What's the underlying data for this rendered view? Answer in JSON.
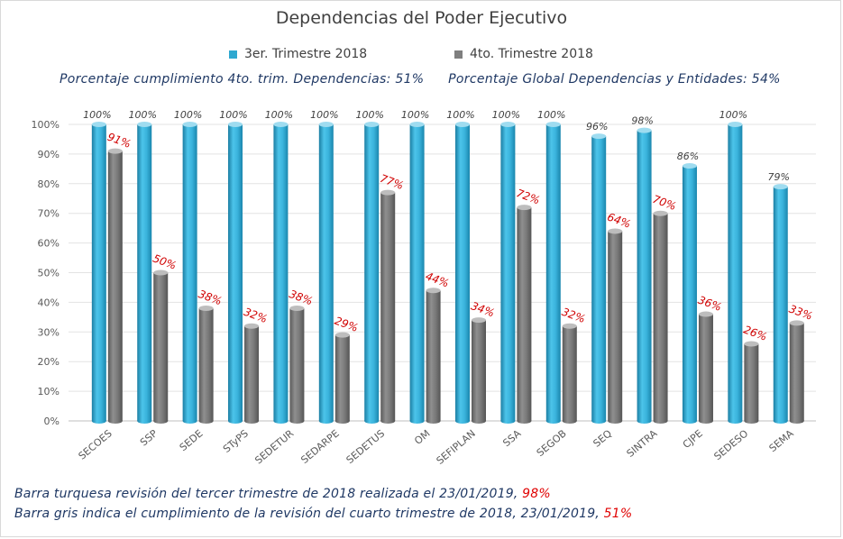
{
  "chart_data": {
    "type": "bar",
    "title": "Dependencias del Poder Ejecutivo",
    "categories": [
      "SECOES",
      "SSP",
      "SEDE",
      "STyPS",
      "SEDETUR",
      "SEDARPE",
      "SEDETUS",
      "OM",
      "SEFIPLAN",
      "SSA",
      "SEGOB",
      "SEQ",
      "SINTRA",
      "CJPE",
      "SEDESO",
      "SEMA"
    ],
    "series": [
      {
        "name": "3er. Trimestre 2018",
        "color": "#2fa8d0",
        "values": [
          100,
          100,
          100,
          100,
          100,
          100,
          100,
          100,
          100,
          100,
          100,
          96,
          98,
          86,
          100,
          79
        ],
        "labels": [
          "100%",
          "100%",
          "100%",
          "100%",
          "100%",
          "100%",
          "100%",
          "100%",
          "100%",
          "100%",
          "100%",
          "96%",
          "98%",
          "86%",
          "100%",
          "79%"
        ]
      },
      {
        "name": "4to. Trimestre 2018",
        "color": "#7f7f7f",
        "values": [
          91,
          50,
          38,
          32,
          38,
          29,
          77,
          44,
          34,
          72,
          32,
          64,
          70,
          36,
          26,
          33
        ],
        "labels": [
          "91%",
          "50%",
          "38%",
          "32%",
          "38%",
          "29%",
          "77%",
          "44%",
          "34%",
          "72%",
          "32%",
          "64%",
          "70%",
          "36%",
          "26%",
          "33%"
        ]
      }
    ],
    "y_ticks": [
      "0%",
      "10%",
      "20%",
      "30%",
      "40%",
      "50%",
      "60%",
      "70%",
      "80%",
      "90%",
      "100%"
    ],
    "ylim": [
      0,
      100
    ],
    "grid": true,
    "legend_position": "top"
  },
  "summary": {
    "dependencias": "Porcentaje cumplimiento 4to. trim. Dependencias: 51%",
    "global": "Porcentaje Global Dependencias y Entidades: 54%"
  },
  "footnotes": {
    "line1_text": "Barra turquesa revisión del tercer trimestre de 2018 realizada el 23/01/2019, ",
    "line1_value": "98%",
    "line2_text": "Barra gris indica el cumplimiento de la revisión del cuarto trimestre de 2018, 23/01/2019, ",
    "line2_value": "51%"
  }
}
